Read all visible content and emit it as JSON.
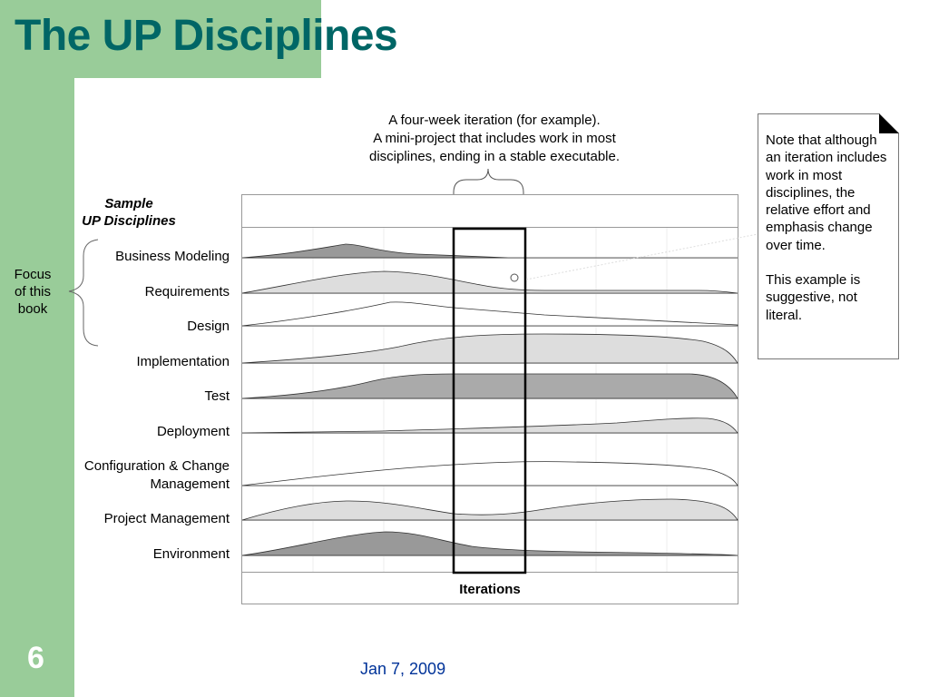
{
  "slide": {
    "title": "The UP Disciplines",
    "number": "6",
    "date": "Jan 7, 2009"
  },
  "diagram": {
    "iteration_callout": [
      "A four-week iteration (for example).",
      "A mini-project that includes work in most",
      "disciplines, ending in a stable executable."
    ],
    "sample_heading": [
      "Sample",
      "UP Disciplines"
    ],
    "focus_label": [
      "Focus",
      "of this",
      "book"
    ],
    "disciplines": [
      {
        "label": [
          "Business Modeling"
        ],
        "fill": "#999999"
      },
      {
        "label": [
          "Requirements"
        ],
        "fill": "#dddddd"
      },
      {
        "label": [
          "Design"
        ],
        "fill": "#ffffff"
      },
      {
        "label": [
          "Implementation"
        ],
        "fill": "#dddddd"
      },
      {
        "label": [
          "Test"
        ],
        "fill": "#aaaaaa"
      },
      {
        "label": [
          "Deployment"
        ],
        "fill": "#dddddd"
      },
      {
        "label": [
          "Configuration & Change",
          "Management"
        ],
        "fill": "#ffffff"
      },
      {
        "label": [
          "Project Management"
        ],
        "fill": "#dddddd"
      },
      {
        "label": [
          "Environment"
        ],
        "fill": "#999999"
      }
    ],
    "iterations_label": "Iterations"
  },
  "note": {
    "paragraph1": "Note that although an iteration includes work in most disciplines, the relative effort and emphasis change over time.",
    "paragraph2": "This example is suggestive, not literal."
  },
  "colors": {
    "green": "#99cc99",
    "title": "#006666",
    "date": "#003399"
  }
}
